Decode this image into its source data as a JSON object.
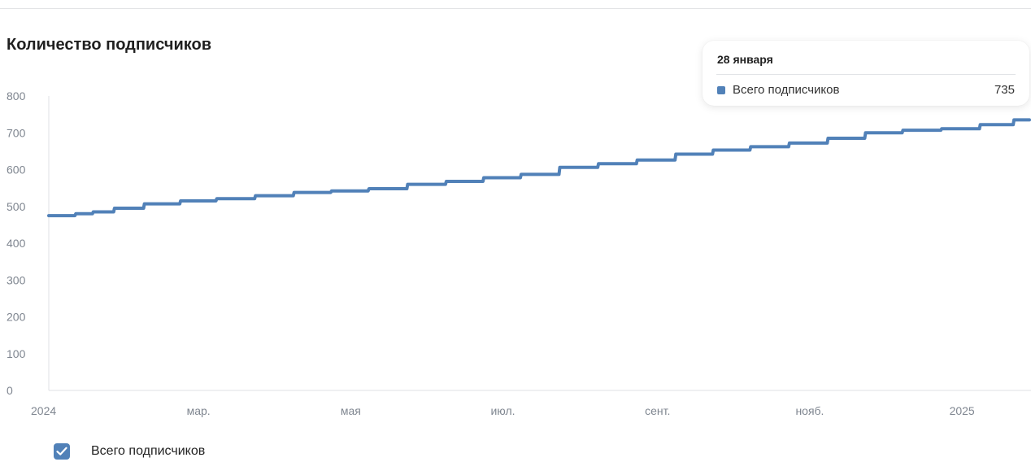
{
  "chart_data": {
    "type": "line",
    "title": "Количество подписчиков",
    "xlabel": "",
    "ylabel": "",
    "ylim": [
      0,
      800
    ],
    "yticks": [
      "0",
      "100",
      "200",
      "300",
      "400",
      "500",
      "600",
      "700",
      "800"
    ],
    "xticks": [
      "2024",
      "мар.",
      "мая",
      "июл.",
      "сент.",
      "нояб.",
      "2025"
    ],
    "grid": false,
    "legend": "bottom-left",
    "series": [
      {
        "name": "Всего подписчиков",
        "color": "#5181b8",
        "x": [
          "2024-01-01",
          "2024-01-08",
          "2024-01-15",
          "2024-01-22",
          "2024-02-01",
          "2024-02-15",
          "2024-03-01",
          "2024-03-15",
          "2024-04-01",
          "2024-04-15",
          "2024-05-01",
          "2024-05-15",
          "2024-06-01",
          "2024-06-15",
          "2024-07-01",
          "2024-07-15",
          "2024-08-01",
          "2024-08-15",
          "2024-09-01",
          "2024-09-15",
          "2024-10-01",
          "2024-10-15",
          "2024-11-01",
          "2024-11-15",
          "2024-12-01",
          "2024-12-15",
          "2025-01-01",
          "2025-01-15",
          "2025-01-28"
        ],
        "values": [
          475,
          475,
          480,
          485,
          495,
          507,
          515,
          521,
          529,
          538,
          542,
          548,
          560,
          568,
          578,
          587,
          606,
          616,
          626,
          642,
          653,
          662,
          672,
          685,
          700,
          707,
          711,
          722,
          735
        ]
      }
    ],
    "tooltip": {
      "date": "28 января",
      "label": "Всего подписчиков",
      "value": "735"
    }
  }
}
